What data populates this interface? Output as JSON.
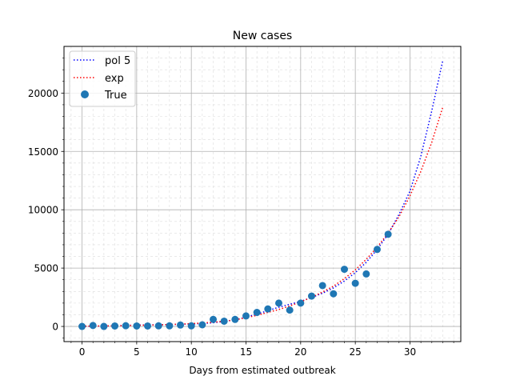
{
  "chart_data": {
    "type": "line",
    "title": "New cases",
    "xlabel": "Days from estimated outbreak",
    "ylabel": "",
    "xlim": [
      -1.65,
      34.65
    ],
    "ylim": [
      -1300,
      24000
    ],
    "xticks": [
      0,
      5,
      10,
      15,
      20,
      25,
      30
    ],
    "yticks": [
      0,
      5000,
      10000,
      15000,
      20000
    ],
    "grid": true,
    "minor_grid": true,
    "legend": {
      "position": "top-left",
      "entries": [
        "pol 5",
        "exp",
        "True"
      ]
    },
    "series": [
      {
        "name": "pol 5",
        "kind": "line",
        "style": "dotted",
        "color": "#0000ff",
        "x": [
          0,
          2,
          4,
          6,
          8,
          10,
          12,
          14,
          15,
          16,
          17,
          18,
          19,
          20,
          21,
          22,
          23,
          24,
          25,
          26,
          27,
          28,
          29,
          30,
          31,
          32,
          33
        ],
        "y": [
          0,
          40,
          90,
          130,
          160,
          210,
          310,
          560,
          800,
          1050,
          1350,
          1650,
          1900,
          2150,
          2480,
          2850,
          3300,
          3900,
          4600,
          5500,
          6600,
          7900,
          9600,
          11600,
          14600,
          18500,
          22800
        ]
      },
      {
        "name": "exp",
        "kind": "line",
        "style": "dotted",
        "color": "#ff0000",
        "x": [
          0,
          2,
          4,
          6,
          8,
          10,
          12,
          14,
          15,
          16,
          17,
          18,
          19,
          20,
          21,
          22,
          23,
          24,
          25,
          26,
          27,
          28,
          29,
          30,
          31,
          32,
          33
        ],
        "y": [
          20,
          40,
          70,
          110,
          160,
          240,
          350,
          560,
          750,
          950,
          1200,
          1450,
          1750,
          2100,
          2500,
          2950,
          3450,
          4100,
          4850,
          5750,
          6800,
          8000,
          9400,
          11200,
          13300,
          15800,
          18800
        ]
      },
      {
        "name": "True",
        "kind": "scatter",
        "color": "#1f77b4",
        "x": [
          0,
          1,
          2,
          3,
          4,
          5,
          6,
          7,
          8,
          9,
          10,
          11,
          12,
          13,
          14,
          15,
          16,
          17,
          18,
          19,
          20,
          21,
          22,
          23,
          24,
          25,
          26,
          27,
          28
        ],
        "y": [
          0,
          80,
          0,
          40,
          60,
          40,
          40,
          50,
          50,
          120,
          50,
          140,
          600,
          450,
          600,
          900,
          1200,
          1500,
          2000,
          1400,
          2000,
          2600,
          3500,
          2800,
          4900,
          3700,
          4500,
          6600,
          7900
        ]
      }
    ]
  }
}
